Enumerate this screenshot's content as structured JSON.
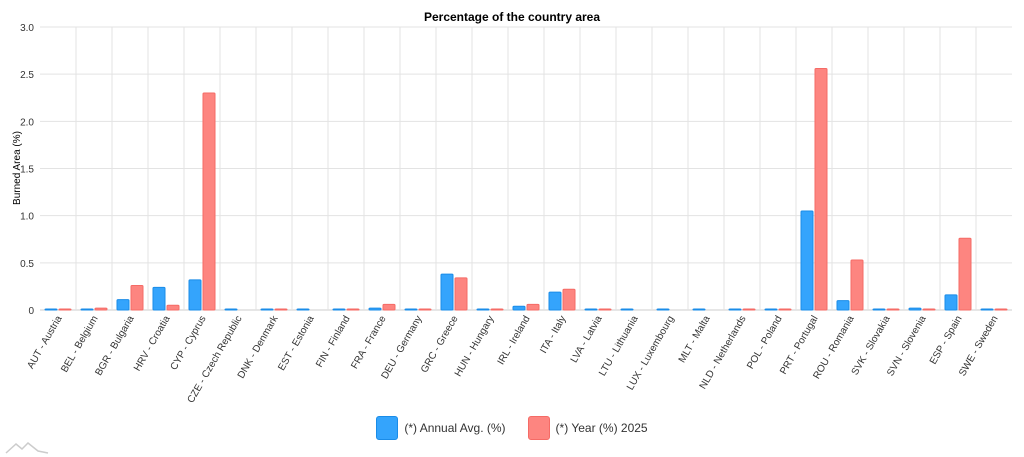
{
  "chart_data": {
    "type": "bar",
    "title": "Percentage of the country area",
    "ylabel": "Burned Area (%)",
    "xlabel": "",
    "ylim": [
      0,
      3
    ],
    "yticks": [
      "0",
      "0.5",
      "1.0",
      "1.5",
      "2.0",
      "2.5",
      "3.0"
    ],
    "grid": true,
    "legend_position": "bottom",
    "categories": [
      "AUT - Austria",
      "BEL - Belgium",
      "BGR - Bulgaria",
      "HRV - Croatia",
      "CYP - Cyprus",
      "CZE - Czech Republic",
      "DNK - Denmark",
      "EST - Estonia",
      "FIN - Finland",
      "FRA - France",
      "DEU - Germany",
      "GRC - Greece",
      "HUN - Hungary",
      "IRL - Ireland",
      "ITA - Italy",
      "LVA - Latvia",
      "LTU - Lithuania",
      "LUX - Luxembourg",
      "MLT - Malta",
      "NLD - Netherlands",
      "POL - Poland",
      "PRT - Portugal",
      "ROU - Romania",
      "SVK - Slovakia",
      "SVN - Slovenia",
      "ESP - Spain",
      "SWE - Sweden"
    ],
    "series": [
      {
        "name": "(*) Annual Avg. (%)",
        "color": "#34a4fc",
        "values": [
          0.005,
          0.01,
          0.11,
          0.24,
          0.32,
          0.004,
          0.005,
          0.004,
          0.003,
          0.02,
          0.003,
          0.38,
          0.01,
          0.04,
          0.19,
          0.003,
          0.003,
          0.003,
          0.01,
          0.003,
          0.003,
          1.05,
          0.1,
          0.003,
          0.02,
          0.16,
          0.003
        ]
      },
      {
        "name": "(*) Year (%) 2025",
        "color": "#fd8580",
        "values": [
          0.01,
          0.02,
          0.26,
          0.05,
          2.3,
          0,
          0.01,
          0,
          0.003,
          0.06,
          0.01,
          0.34,
          0.01,
          0.06,
          0.22,
          0.003,
          0,
          0,
          0,
          0.003,
          0.003,
          2.56,
          0.53,
          0.01,
          0.01,
          0.76,
          0.003
        ]
      }
    ]
  }
}
